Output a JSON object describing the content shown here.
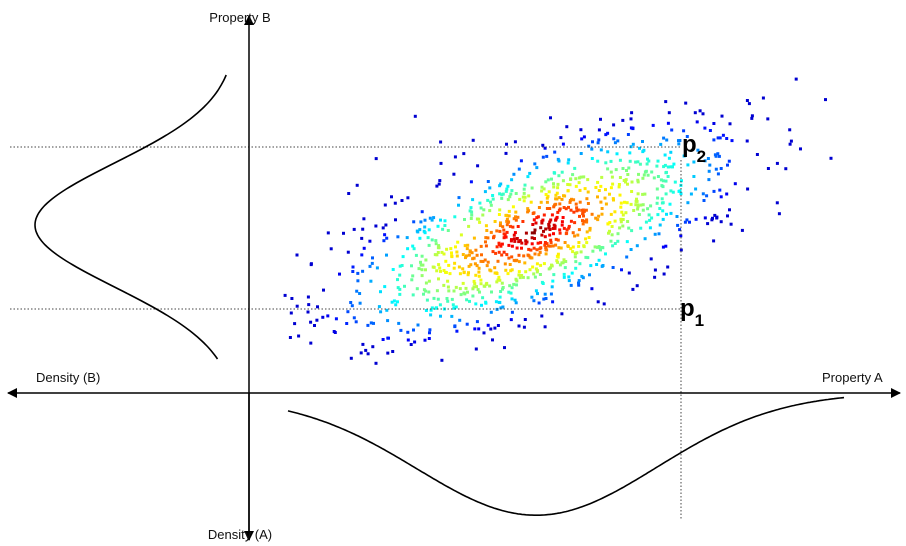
{
  "axes": {
    "vertical_top": "Property B",
    "vertical_bottom": "Density (A)",
    "horizontal_left": "Density (B)",
    "horizontal_right": "Property A"
  },
  "markers": [
    {
      "label": "p",
      "subscript": "2"
    },
    {
      "label": "p",
      "subscript": "1"
    }
  ]
}
